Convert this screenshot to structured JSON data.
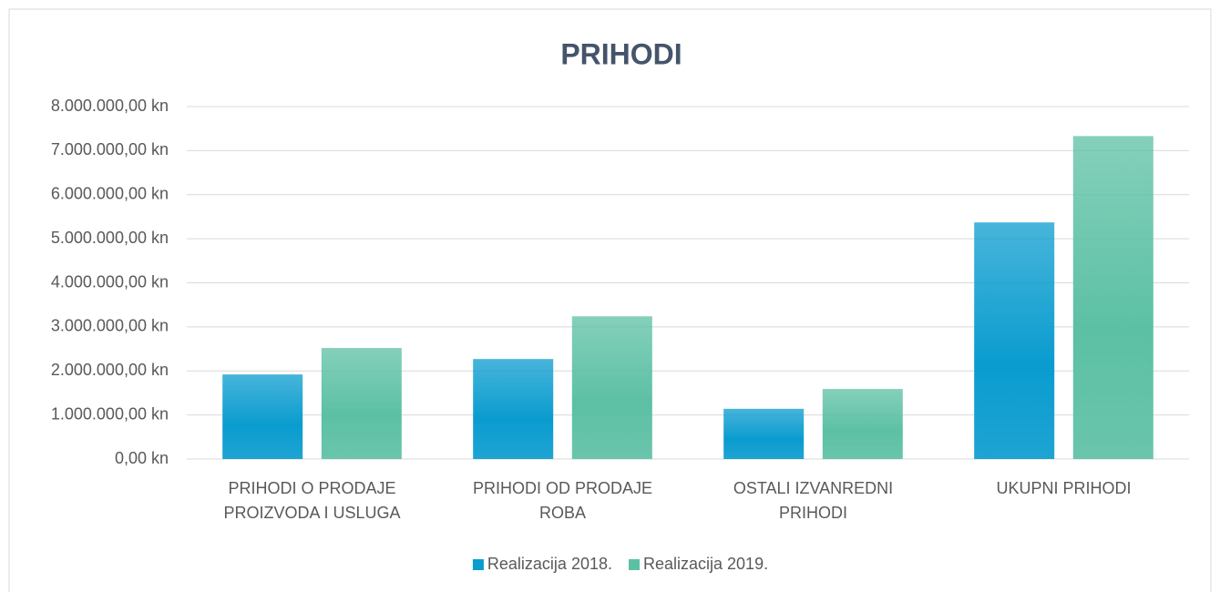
{
  "chart_data": {
    "type": "bar",
    "title": "PRIHODI",
    "categories": [
      "PRIHODI O PRODAJE PROIZVODA I USLUGA",
      "PRIHODI OD PRODAJE ROBA",
      "OSTALI IZVANREDNI PRIHODI",
      "UKUPNI PRIHODI"
    ],
    "series": [
      {
        "name": "Realizacija 2018.",
        "color": "#0a9ccf",
        "values": [
          1920000,
          2270000,
          1140000,
          5370000
        ]
      },
      {
        "name": "Realizacija 2019.",
        "color": "#5cc0a4",
        "values": [
          2520000,
          3240000,
          1590000,
          7330000
        ]
      }
    ],
    "ylim": [
      0,
      8000000
    ],
    "yticks": [
      {
        "value": 0,
        "label": "0,00 kn"
      },
      {
        "value": 1000000,
        "label": "1.000.000,00 kn"
      },
      {
        "value": 2000000,
        "label": "2.000.000,00 kn"
      },
      {
        "value": 3000000,
        "label": "3.000.000,00 kn"
      },
      {
        "value": 4000000,
        "label": "4.000.000,00 kn"
      },
      {
        "value": 5000000,
        "label": "5.000.000,00 kn"
      },
      {
        "value": 6000000,
        "label": "6.000.000,00 kn"
      },
      {
        "value": 7000000,
        "label": "7.000.000,00 kn"
      },
      {
        "value": 8000000,
        "label": "8.000.000,00 kn"
      }
    ],
    "grid": true,
    "legend": "bottom"
  }
}
